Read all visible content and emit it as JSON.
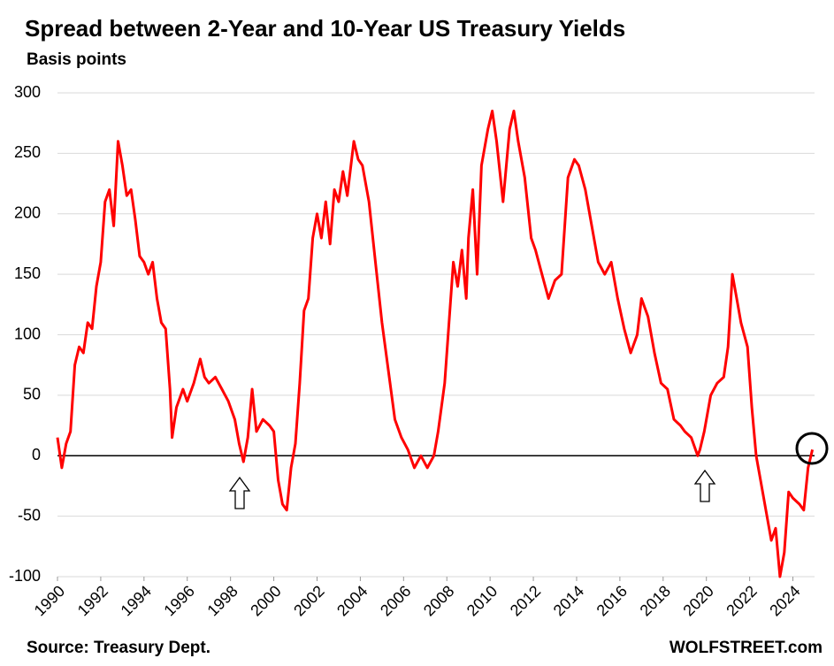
{
  "chart_data": {
    "type": "line",
    "title": "Spread between 2-Year and 10-Year US Treasury Yields",
    "subtitle": "Basis points",
    "source": "Source: Treasury Dept.",
    "brand": "WOLFSTREET.com",
    "color": "#ff0000",
    "grid": true,
    "xlim": [
      1990,
      2025
    ],
    "xticks": [
      1990,
      1992,
      1994,
      1996,
      1998,
      2000,
      2002,
      2004,
      2006,
      2008,
      2010,
      2012,
      2014,
      2016,
      2018,
      2020,
      2022,
      2024
    ],
    "ylim": [
      -100,
      300
    ],
    "yticks": [
      -100,
      -50,
      0,
      50,
      100,
      150,
      200,
      250,
      300
    ],
    "x": [
      1990.0,
      1990.2,
      1990.4,
      1990.6,
      1990.8,
      1991.0,
      1991.2,
      1991.4,
      1991.6,
      1991.8,
      1992.0,
      1992.2,
      1992.4,
      1992.6,
      1992.8,
      1993.0,
      1993.2,
      1993.4,
      1993.6,
      1993.8,
      1994.0,
      1994.2,
      1994.4,
      1994.6,
      1994.8,
      1995.0,
      1995.2,
      1995.3,
      1995.5,
      1995.8,
      1996.0,
      1996.3,
      1996.6,
      1996.8,
      1997.0,
      1997.3,
      1997.6,
      1997.9,
      1998.2,
      1998.4,
      1998.6,
      1998.8,
      1999.0,
      1999.2,
      1999.5,
      1999.8,
      2000.0,
      2000.2,
      2000.4,
      2000.6,
      2000.8,
      2001.0,
      2001.2,
      2001.4,
      2001.6,
      2001.8,
      2002.0,
      2002.2,
      2002.4,
      2002.6,
      2002.8,
      2003.0,
      2003.2,
      2003.4,
      2003.7,
      2003.9,
      2004.1,
      2004.4,
      2004.7,
      2005.0,
      2005.3,
      2005.6,
      2005.9,
      2006.2,
      2006.5,
      2006.8,
      2007.1,
      2007.4,
      2007.6,
      2007.9,
      2008.1,
      2008.3,
      2008.5,
      2008.7,
      2008.9,
      2009.0,
      2009.2,
      2009.4,
      2009.6,
      2009.9,
      2010.1,
      2010.3,
      2010.6,
      2010.9,
      2011.1,
      2011.3,
      2011.6,
      2011.9,
      2012.1,
      2012.4,
      2012.7,
      2013.0,
      2013.3,
      2013.6,
      2013.9,
      2014.1,
      2014.4,
      2014.7,
      2015.0,
      2015.3,
      2015.6,
      2015.9,
      2016.2,
      2016.5,
      2016.8,
      2017.0,
      2017.3,
      2017.6,
      2017.9,
      2018.2,
      2018.5,
      2018.8,
      2019.0,
      2019.3,
      2019.6,
      2019.7,
      2019.9,
      2020.2,
      2020.5,
      2020.8,
      2021.0,
      2021.2,
      2021.4,
      2021.6,
      2021.9,
      2022.1,
      2022.3,
      2022.5,
      2022.8,
      2023.0,
      2023.2,
      2023.4,
      2023.6,
      2023.8,
      2024.0,
      2024.3,
      2024.5,
      2024.7,
      2024.9
    ],
    "values": [
      15,
      -10,
      10,
      20,
      75,
      90,
      85,
      110,
      105,
      140,
      160,
      210,
      220,
      190,
      260,
      240,
      215,
      220,
      195,
      165,
      160,
      150,
      160,
      130,
      110,
      105,
      55,
      15,
      40,
      55,
      45,
      60,
      80,
      65,
      60,
      65,
      55,
      45,
      30,
      10,
      -5,
      15,
      55,
      20,
      30,
      25,
      20,
      -20,
      -40,
      -45,
      -10,
      10,
      60,
      120,
      130,
      180,
      200,
      180,
      210,
      175,
      220,
      210,
      235,
      215,
      260,
      245,
      240,
      210,
      160,
      110,
      70,
      30,
      15,
      5,
      -10,
      0,
      -10,
      0,
      20,
      60,
      110,
      160,
      140,
      170,
      130,
      180,
      220,
      150,
      240,
      270,
      285,
      260,
      210,
      270,
      285,
      260,
      230,
      180,
      170,
      150,
      130,
      145,
      150,
      230,
      245,
      240,
      220,
      190,
      160,
      150,
      160,
      130,
      105,
      85,
      100,
      130,
      115,
      85,
      60,
      55,
      30,
      25,
      20,
      15,
      0,
      5,
      20,
      50,
      60,
      65,
      90,
      150,
      130,
      110,
      90,
      40,
      0,
      -20,
      -50,
      -70,
      -60,
      -100,
      -80,
      -30,
      -35,
      -40,
      -45,
      -10,
      5
    ]
  }
}
